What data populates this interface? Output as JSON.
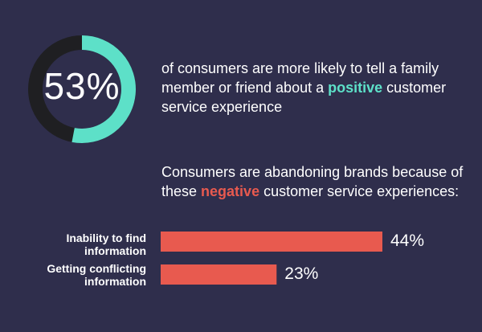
{
  "headline": {
    "percent": "53%",
    "value": 53,
    "text_before": "of consumers are more likely to tell a family member or friend about a ",
    "highlight": "positive",
    "text_after": " customer service experience"
  },
  "subhead": {
    "text_before": "Consumers are abandoning brands because of these ",
    "highlight": "negative",
    "text_after": " customer service experiences:"
  },
  "colors": {
    "background": "#2f2e4c",
    "ring_track": "#1f1f22",
    "ring_fill": "#5de0c8",
    "bar": "#e85a4f",
    "positive": "#5de0c8",
    "negative": "#e85a4f"
  },
  "chart_data": [
    {
      "type": "pie",
      "values": [
        53
      ],
      "labels": [
        "53%"
      ]
    },
    {
      "type": "bar",
      "orientation": "horizontal",
      "categories": [
        "Inability to find information",
        "Getting conflicting information"
      ],
      "category_lines": [
        [
          "Inability to find",
          "information"
        ],
        [
          "Getting conflicting",
          "information"
        ]
      ],
      "values": [
        44,
        23
      ],
      "value_labels": [
        "44%",
        "23%"
      ]
    }
  ]
}
